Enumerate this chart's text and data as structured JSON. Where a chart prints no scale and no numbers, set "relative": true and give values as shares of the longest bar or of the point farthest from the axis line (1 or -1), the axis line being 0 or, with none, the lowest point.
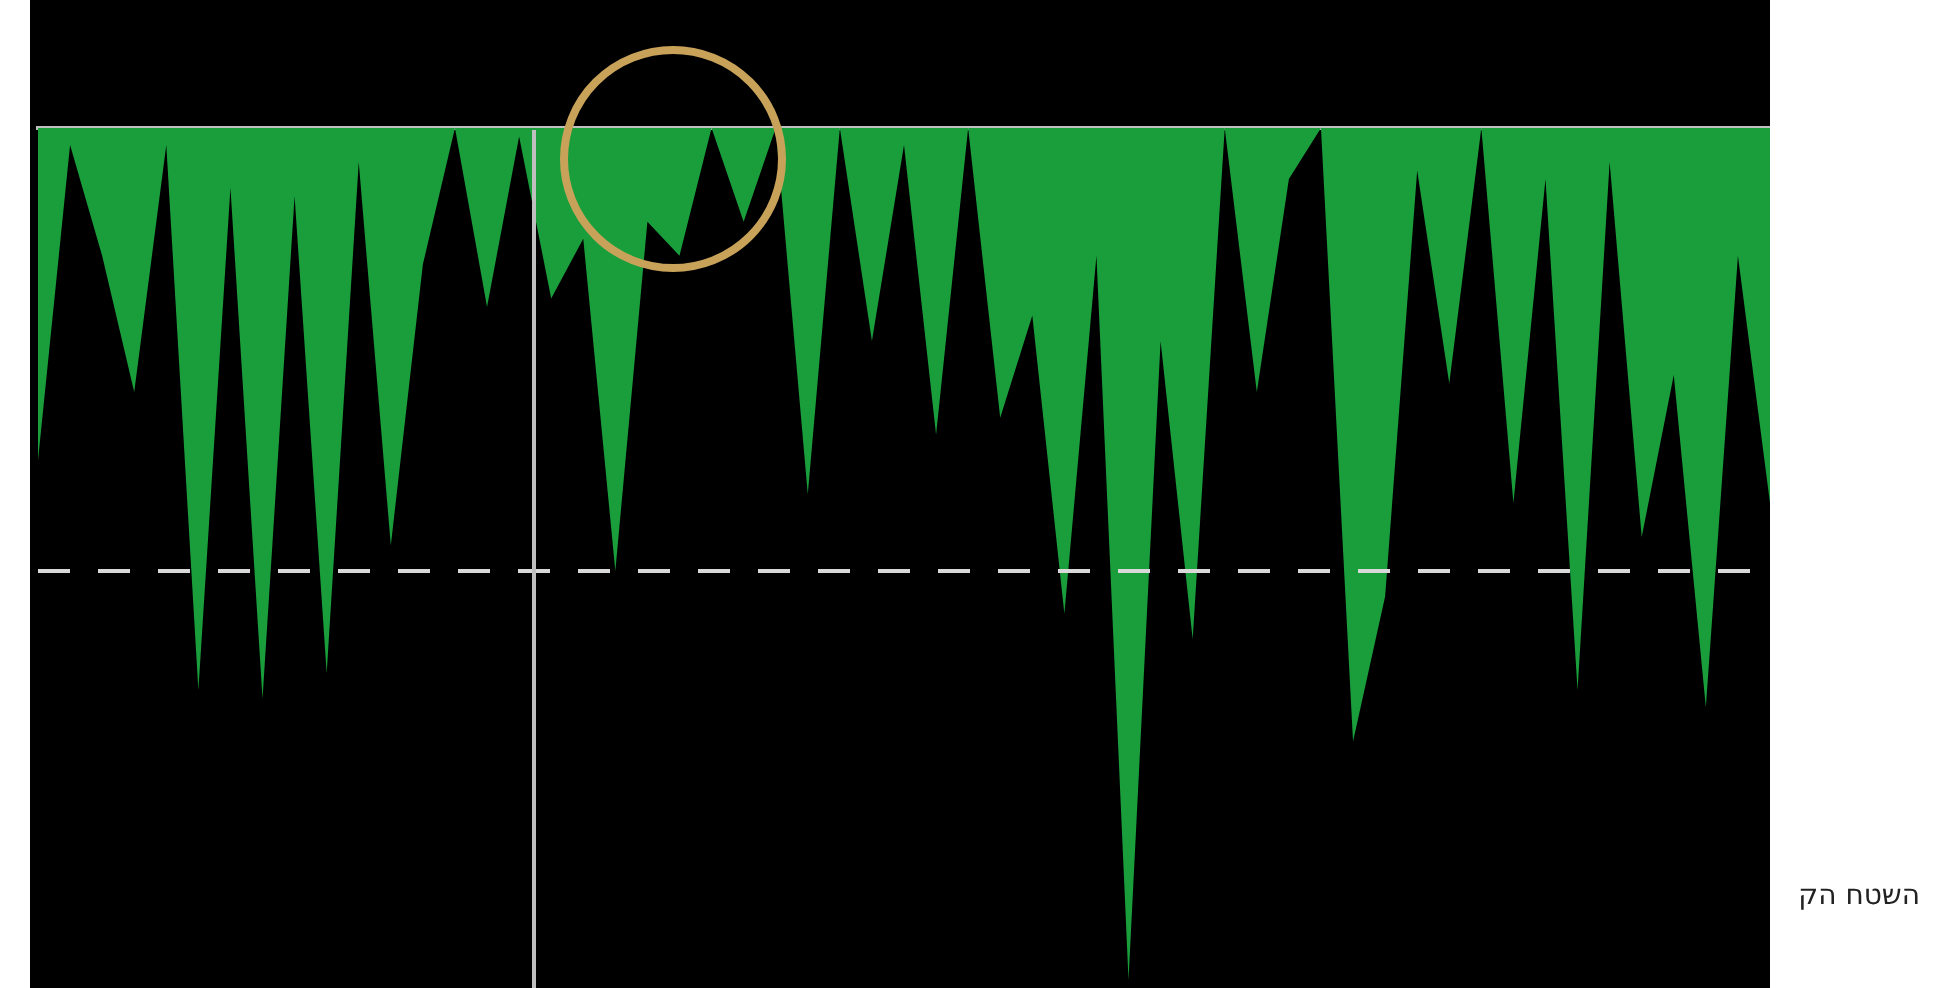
{
  "chart_data": {
    "type": "area",
    "relative": true,
    "categories": [
      null,
      null,
      null,
      null,
      null,
      null,
      null,
      null,
      null,
      null,
      null,
      null,
      null,
      null,
      null,
      null,
      null,
      null,
      null,
      null,
      null,
      null,
      null,
      null,
      null,
      null,
      null,
      null,
      null,
      null,
      null,
      null,
      null,
      null,
      null,
      null,
      null,
      null,
      null,
      null,
      null,
      null,
      null,
      null,
      null,
      null,
      null,
      null,
      null,
      null,
      null,
      null,
      null,
      null,
      null
    ],
    "series": [
      {
        "color": "#1a9e3c",
        "values": [
          -0.39,
          -0.02,
          -0.15,
          -0.31,
          -0.02,
          -0.66,
          -0.07,
          -0.67,
          -0.08,
          -0.64,
          -0.04,
          -0.49,
          -0.16,
          0,
          -0.21,
          -0.01,
          -0.2,
          -0.13,
          -0.52,
          -0.11,
          -0.15,
          0,
          -0.11,
          0,
          -0.43,
          0,
          -0.25,
          -0.02,
          -0.36,
          0,
          -0.34,
          -0.22,
          -0.57,
          -0.15,
          -1,
          -0.25,
          -0.6,
          0,
          -0.31,
          -0.06,
          0,
          -0.72,
          -0.55,
          -0.05,
          -0.3,
          0,
          -0.44,
          -0.06,
          -0.66,
          -0.04,
          -0.48,
          -0.29,
          -0.68,
          -0.15,
          -0.44
        ]
      }
    ],
    "ref_lines": [
      {
        "axis": "y",
        "value": -0.52,
        "color": "#d9d9d9",
        "line_style": "dashed"
      }
    ],
    "annotations": [
      "השטח הק"
    ],
    "legend": false
  }
}
